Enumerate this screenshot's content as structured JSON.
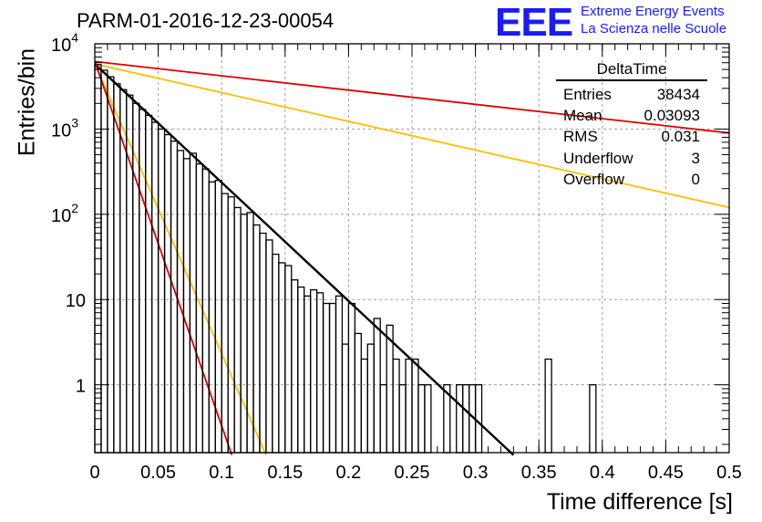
{
  "title": "PARM-01-2016-12-23-00054",
  "logo": {
    "text": "EEE",
    "line1": "Extreme Energy Events",
    "line2": "La Scienza nelle Scuole",
    "color": "#1a1aff"
  },
  "stats": {
    "title": "DeltaTime",
    "rows": [
      {
        "label": "Entries",
        "value": "38434"
      },
      {
        "label": "Mean",
        "value": "0.03093"
      },
      {
        "label": "RMS",
        "value": "0.031"
      },
      {
        "label": "Underflow",
        "value": "3"
      },
      {
        "label": "Overflow",
        "value": "0"
      }
    ]
  },
  "chart_data": {
    "type": "histogram",
    "xlabel": "Time difference [s]",
    "ylabel": "Entries/bin",
    "xlim": [
      0,
      0.5
    ],
    "ylim": [
      0.16,
      10000
    ],
    "yscale": "log",
    "grid": true,
    "x_ticks": [
      "0",
      "0.05",
      "0.1",
      "0.15",
      "0.2",
      "0.25",
      "0.3",
      "0.35",
      "0.4",
      "0.45",
      "0.5"
    ],
    "y_tick_labels": [
      {
        "value": 1,
        "label": "1"
      },
      {
        "value": 10,
        "label": "10"
      },
      {
        "value": 100,
        "label": "10",
        "exp": "2"
      },
      {
        "value": 1000,
        "label": "10",
        "exp": "3"
      },
      {
        "value": 10000,
        "label": "10",
        "exp": "4"
      }
    ],
    "histogram": {
      "bin_width": 0.005,
      "color": "#000000",
      "counts": [
        5700,
        4900,
        4100,
        3400,
        2900,
        2500,
        2000,
        1700,
        1450,
        1200,
        1000,
        860,
        720,
        560,
        450,
        520,
        390,
        340,
        240,
        250,
        175,
        160,
        120,
        100,
        105,
        75,
        60,
        50,
        34,
        27,
        25,
        17,
        14,
        11,
        13,
        12,
        9,
        9,
        11,
        3,
        9,
        4,
        2,
        3,
        6,
        1,
        5,
        2,
        1,
        2,
        2,
        1,
        1,
        0,
        0,
        1,
        0,
        1,
        1,
        1,
        1,
        0,
        0,
        0,
        0,
        0,
        0,
        0,
        0,
        0,
        0,
        2,
        0,
        0,
        0,
        0,
        0,
        0,
        1,
        0,
        0,
        0,
        0,
        0,
        0,
        0,
        0,
        0,
        0,
        0,
        0,
        0,
        0,
        0,
        0,
        0,
        0,
        0,
        0,
        0
      ]
    },
    "lines": [
      {
        "color": "#000000",
        "x0": 0,
        "y0": 5800,
        "x1": 0.33,
        "y1": 0.15
      },
      {
        "color": "#ffbf00",
        "x0": 0,
        "y0": 5800,
        "x1": 0.5,
        "y1": 120
      },
      {
        "color": "#ffbf00",
        "x0": 0,
        "y0": 5800,
        "x1": 0.135,
        "y1": 0.15
      },
      {
        "color": "#dd0000",
        "x0": 0,
        "y0": 6200,
        "x1": 0.5,
        "y1": 900
      },
      {
        "color": "#dd0000",
        "x0": 0,
        "y0": 6200,
        "x1": 0.108,
        "y1": 0.15
      }
    ]
  }
}
